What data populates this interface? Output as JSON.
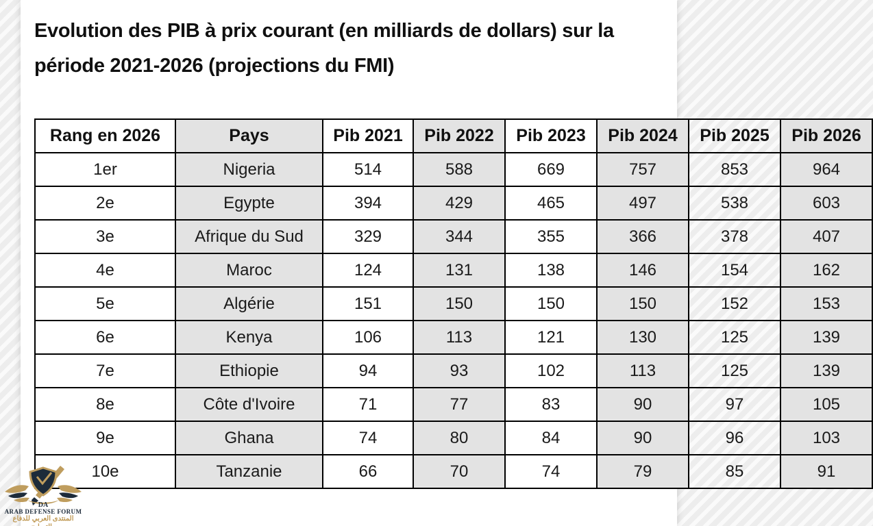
{
  "title": {
    "line1": "Evolution des PIB à prix courant (en milliards de dollars) sur la",
    "line2": "période 2021-2026 (projections du FMI)"
  },
  "chart_data": {
    "type": "table",
    "title": "Evolution des PIB à prix courant (en milliards de dollars) sur la période 2021-2026 (projections du FMI)",
    "unit": "milliards de dollars",
    "source": "projections du FMI",
    "columns": [
      "Rang en 2026",
      "Pays",
      "Pib 2021",
      "Pib 2022",
      "Pib 2023",
      "Pib 2024",
      "Pib 2025",
      "Pib 2026"
    ],
    "rows": [
      [
        "1er",
        "Nigeria",
        514,
        588,
        669,
        757,
        853,
        964
      ],
      [
        "2e",
        "Egypte",
        394,
        429,
        465,
        497,
        538,
        603
      ],
      [
        "3e",
        "Afrique du Sud",
        329,
        344,
        355,
        366,
        378,
        407
      ],
      [
        "4e",
        "Maroc",
        124,
        131,
        138,
        146,
        154,
        162
      ],
      [
        "5e",
        "Algérie",
        151,
        150,
        150,
        150,
        152,
        153
      ],
      [
        "6e",
        "Kenya",
        106,
        113,
        121,
        130,
        125,
        139
      ],
      [
        "7e",
        "Ethiopie",
        94,
        93,
        102,
        113,
        125,
        139
      ],
      [
        "8e",
        "Côte d'Ivoire",
        71,
        77,
        83,
        90,
        97,
        105
      ],
      [
        "9e",
        "Ghana",
        74,
        80,
        84,
        90,
        96,
        103
      ],
      [
        "10e",
        "Tanzanie",
        66,
        70,
        74,
        79,
        85,
        91
      ]
    ],
    "layout": {
      "grid": true,
      "alt_column_color": "#e3e3e3",
      "border_color": "#000000"
    }
  },
  "watermark": {
    "monogram": "DA",
    "name": "ARAB DEFENSE FORUM",
    "name_ar": "المنتدى العربي للدفاع والتسليح",
    "colors": {
      "gold": "#bf9d5e",
      "navy": "#1d2b3a"
    }
  }
}
